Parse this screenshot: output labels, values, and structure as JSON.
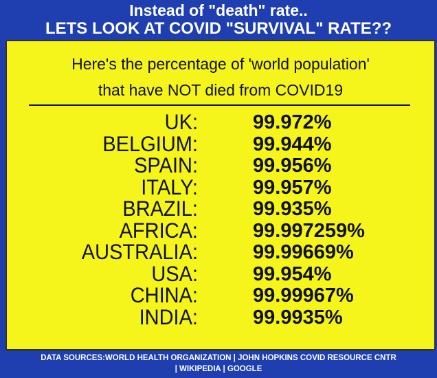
{
  "header": {
    "line1": "Instead of \"death\" rate..",
    "line2": "LETS LOOK AT COVID \"SURVIVAL\" RATE??"
  },
  "subtitle": {
    "line1": "Here's the percentage of 'world population'",
    "line2": "that have NOT died from COVID19"
  },
  "rows": [
    [
      "UK:",
      "99.972%"
    ],
    [
      "BELGIUM:",
      "99.944%"
    ],
    [
      "SPAIN:",
      "99.956%"
    ],
    [
      "ITALY:",
      "99.957%"
    ],
    [
      "BRAZIL:",
      "99.935%"
    ],
    [
      "AFRICA:",
      "99.997259%"
    ],
    [
      "AUSTRALIA:",
      "99.99669%"
    ],
    [
      "USA:",
      "99.954%"
    ],
    [
      "CHINA:",
      "99.99967%"
    ],
    [
      "INDIA:",
      "99.9935%"
    ]
  ],
  "footer": {
    "line1": "DATA SOURCES:WORLD HEALTH ORGANIZATION | JOHN HOPKINS COVID RESOURCE CNTR",
    "line2": "| WIKIPEDIA | GOOGLE"
  }
}
